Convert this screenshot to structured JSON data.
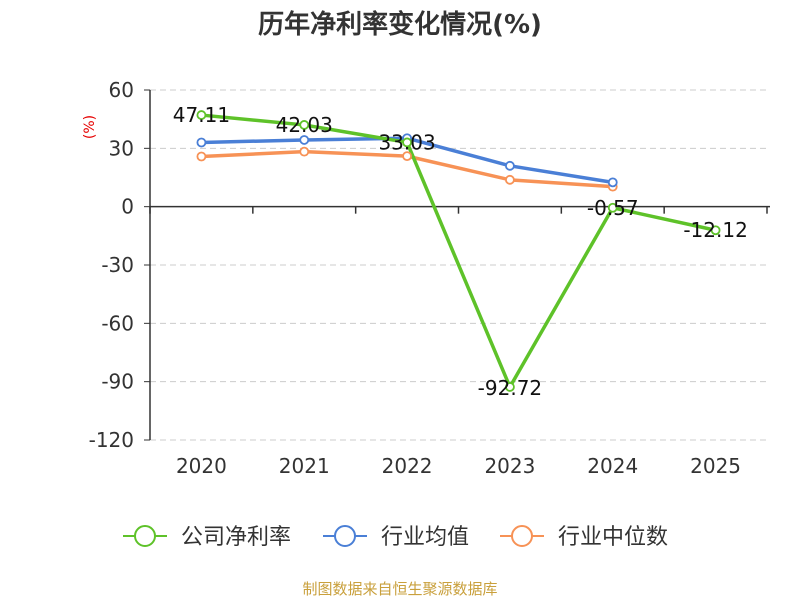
{
  "chart_data": {
    "type": "line",
    "title": "历年净利率变化情况(%)",
    "ylabel": "(%)",
    "xlabel": "",
    "categories": [
      "2020",
      "2021",
      "2022",
      "2023",
      "2024",
      "2025"
    ],
    "ylim": [
      -120,
      60
    ],
    "yticks": [
      60,
      30,
      0,
      -30,
      -60,
      -90,
      -120
    ],
    "grid": true,
    "legend_position": "bottom",
    "series": [
      {
        "name": "公司净利率",
        "color": "#5ec229",
        "values": [
          47.11,
          42.03,
          33.03,
          -92.72,
          -0.57,
          -12.12
        ],
        "labels": [
          "47.11",
          "42.03",
          "33.03",
          "-92.72",
          "-0.57",
          "-12.12"
        ]
      },
      {
        "name": "行业均值",
        "color": "#4a7fd6",
        "values": [
          33.0,
          34.3,
          35.2,
          21.0,
          12.5,
          null
        ]
      },
      {
        "name": "行业中位数",
        "color": "#f79256",
        "values": [
          25.8,
          28.3,
          26.0,
          13.8,
          10.3,
          null
        ]
      }
    ],
    "source": "制图数据来自恒生聚源数据库"
  }
}
